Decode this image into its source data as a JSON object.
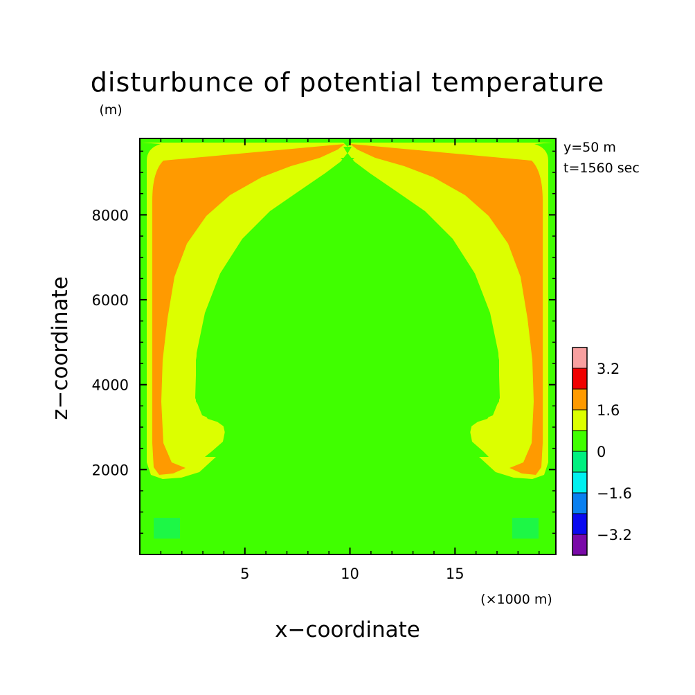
{
  "chart_data": {
    "type": "heatmap",
    "title": "disturbunce of potential temperature",
    "y_unit_label": "(m)",
    "x_unit_label": "(×1000 m)",
    "xlabel": "x−coordinate",
    "ylabel": "z−coordinate",
    "xlim": [
      0,
      19.8
    ],
    "ylim": [
      0,
      9800
    ],
    "x_ticks": [
      {
        "v": 5,
        "label": "5"
      },
      {
        "v": 10,
        "label": "10"
      },
      {
        "v": 15,
        "label": "15"
      }
    ],
    "y_ticks": [
      {
        "v": 2000,
        "label": "2000"
      },
      {
        "v": 4000,
        "label": "4000"
      },
      {
        "v": 6000,
        "label": "6000"
      },
      {
        "v": 8000,
        "label": "8000"
      }
    ],
    "annotations": [
      "y=50 m",
      "t=1560 sec"
    ],
    "grid": false,
    "colorbar": {
      "levels": [
        -4.0,
        -3.2,
        -2.4,
        -1.6,
        -0.8,
        0,
        0.8,
        1.6,
        2.4,
        3.2,
        4.0
      ],
      "colors": [
        "#7a0aa8",
        "#0a0af0",
        "#0a80f0",
        "#00f0f0",
        "#00f080",
        "#40ff00",
        "#dcff00",
        "#ff9a00",
        "#f00000",
        "#f8a0a0"
      ],
      "tick_labels": [
        {
          "v": 3.2,
          "label": "3.2"
        },
        {
          "v": 1.6,
          "label": "1.6"
        },
        {
          "v": 0,
          "label": "0"
        },
        {
          "v": -1.6,
          "label": "−1.6"
        },
        {
          "v": -3.2,
          "label": "−3.2"
        }
      ]
    },
    "field_regions": {
      "background": {
        "value_range": [
          0,
          0.8
        ],
        "color": "#40ff00"
      },
      "yellow_band": {
        "value_range": [
          0.8,
          1.6
        ],
        "color": "#dcff00"
      },
      "orange_core": {
        "value_range": [
          1.6,
          2.4
        ],
        "color": "#ff9a00"
      }
    }
  }
}
